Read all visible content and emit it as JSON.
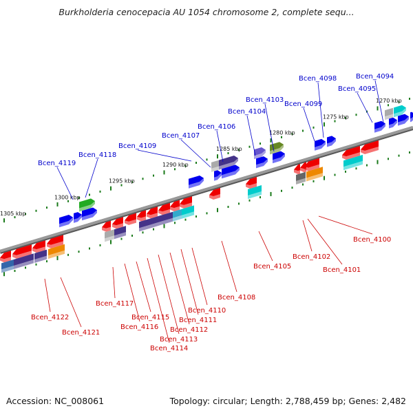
{
  "title": "Burkholderia cenocepacia AU 1054 chromosome 2, complete sequ...",
  "footer": {
    "accession": "Accession: NC_008061",
    "summary": "Topology: circular; Length: 2,788,459 bp; Genes: 2,482"
  },
  "colors": {
    "backbone": "#888888",
    "forward_label": "#0000cc",
    "reverse_label": "#cc0000",
    "tick": "#1a7a1a"
  },
  "scale_labels": [
    {
      "text": "1305 kbp",
      "kbp": 1305
    },
    {
      "text": "1300 kbp",
      "kbp": 1300
    },
    {
      "text": "1295 kbp",
      "kbp": 1295
    },
    {
      "text": "1290 kbp",
      "kbp": 1290
    },
    {
      "text": "1285 kbp",
      "kbp": 1285
    },
    {
      "text": "1280 kbp",
      "kbp": 1280
    },
    {
      "text": "1275 kbp",
      "kbp": 1275
    },
    {
      "text": "1270 kbp",
      "kbp": 1270
    }
  ],
  "forward_genes": [
    {
      "name": "Bcen_4119",
      "color": "#0000ee"
    },
    {
      "name": "Bcen_4118",
      "color": "#22aa22"
    },
    {
      "name": "Bcen_4109",
      "color": "#0000ee"
    },
    {
      "name": "Bcen_4107",
      "color": "#0000ee"
    },
    {
      "name": "Bcen_4106",
      "color": "#443388"
    },
    {
      "name": "Bcen_4104",
      "color": "#6655cc"
    },
    {
      "name": "Bcen_4103",
      "color": "#668822"
    },
    {
      "name": "Bcen_4099",
      "color": "#0000ee"
    },
    {
      "name": "Bcen_4098",
      "color": "#0000ee"
    },
    {
      "name": "Bcen_4095",
      "color": "#0000ee"
    },
    {
      "name": "Bcen_4094",
      "color": "#00cccc"
    }
  ],
  "reverse_genes": [
    {
      "name": "Bcen_4122",
      "color": "#ee0000"
    },
    {
      "name": "Bcen_4121",
      "color": "#ee8800"
    },
    {
      "name": "Bcen_4117",
      "color": "#443388"
    },
    {
      "name": "Bcen_4116",
      "color": "#ee0000"
    },
    {
      "name": "Bcen_4115",
      "color": "#ee0000"
    },
    {
      "name": "Bcen_4114",
      "color": "#443388"
    },
    {
      "name": "Bcen_4113",
      "color": "#443388"
    },
    {
      "name": "Bcen_4112",
      "color": "#ee0000"
    },
    {
      "name": "Bcen_4111",
      "color": "#ee0000"
    },
    {
      "name": "Bcen_4110",
      "color": "#00cccc"
    },
    {
      "name": "Bcen_4108",
      "color": "#ee0000"
    },
    {
      "name": "Bcen_4105",
      "color": "#00cccc"
    },
    {
      "name": "Bcen_4102",
      "color": "#ee0000"
    },
    {
      "name": "Bcen_4101",
      "color": "#ee8800"
    },
    {
      "name": "Bcen_4100",
      "color": "#00cccc"
    }
  ]
}
